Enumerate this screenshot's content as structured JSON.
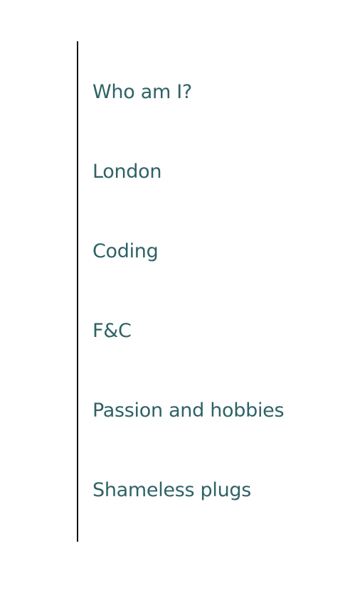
{
  "nav": {
    "items": [
      {
        "label": "Who am I?"
      },
      {
        "label": "London"
      },
      {
        "label": "Coding"
      },
      {
        "label": "F&C"
      },
      {
        "label": "Passion and hobbies"
      },
      {
        "label": "Shameless plugs"
      }
    ]
  },
  "colors": {
    "link": "#2e6266",
    "border": "#111111",
    "background": "#ffffff"
  }
}
